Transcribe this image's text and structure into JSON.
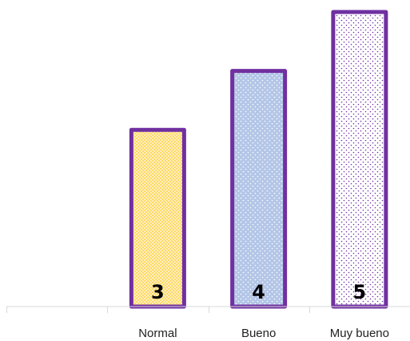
{
  "chart_data": {
    "type": "bar",
    "categories": [
      "",
      "Normal",
      "Bueno",
      "Muy bueno"
    ],
    "values": [
      null,
      3,
      4,
      5
    ],
    "data_labels": [
      "",
      "3",
      "4",
      "5"
    ],
    "ylim": [
      0,
      5
    ],
    "grid": false,
    "colors": {
      "outline": "#7030A0",
      "bars": [
        "",
        "#FFD966",
        "#B4C6E7",
        "#FFFFFF"
      ],
      "patterns": [
        "",
        "dense-dots",
        "light-dots",
        "sparse-dots"
      ],
      "pattern_ink": [
        "",
        "#FFFFFF",
        "#FFFFFF",
        "#7030A0"
      ],
      "axis": "#D9D9D9"
    }
  }
}
